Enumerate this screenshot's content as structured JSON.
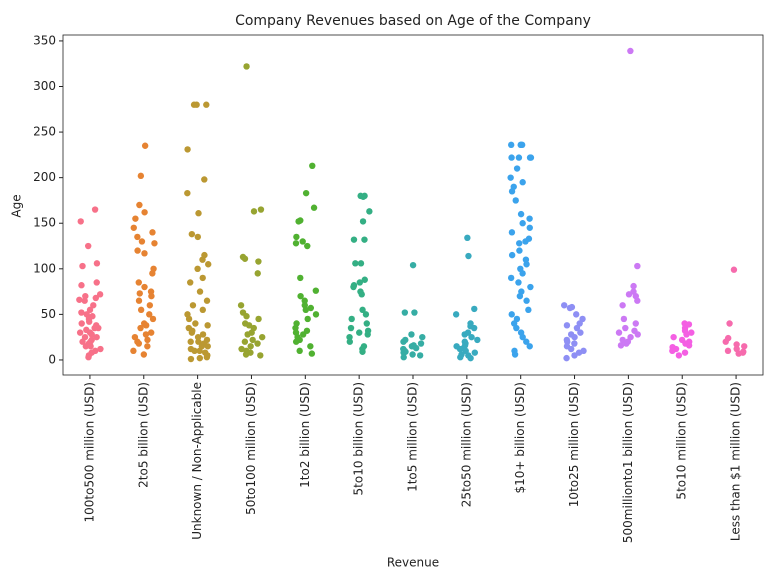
{
  "chart_data": {
    "type": "strip",
    "title": "Company Revenues based on Age of the Company",
    "x_label": "Revenue",
    "y_label": "Age",
    "categories": [
      "100to500 million (USD)",
      "2to5 billion (USD)",
      "Unknown / Non-Applicable",
      "50to100 million (USD)",
      "1to2 billion (USD)",
      "5to10 billion (USD)",
      "1to5 million (USD)",
      "25to50 million (USD)",
      "$10+ billion (USD)",
      "10to25 million (USD)",
      "500millionto1 billion (USD)",
      "5to10 million (USD)",
      "Less than $1 million (USD)"
    ],
    "colors": [
      "#f77189",
      "#e68332",
      "#bb9832",
      "#97a431",
      "#50b131",
      "#34af84",
      "#36ada4",
      "#38aabf",
      "#3ba3ec",
      "#8e8ff4",
      "#cc79f4",
      "#f45fe3",
      "#f66bad"
    ],
    "values": [
      [
        165,
        152,
        125,
        106,
        103,
        85,
        82,
        72,
        70,
        68,
        66,
        65,
        60,
        55,
        52,
        50,
        48,
        45,
        42,
        40,
        38,
        35,
        33,
        30,
        28,
        25,
        22,
        20,
        18,
        15,
        12,
        10,
        8,
        5,
        3,
        25,
        30,
        20,
        15,
        35
      ],
      [
        235,
        202,
        170,
        162,
        155,
        145,
        140,
        135,
        130,
        128,
        120,
        117,
        100,
        95,
        85,
        80,
        75,
        73,
        70,
        65,
        60,
        55,
        50,
        45,
        40,
        38,
        35,
        30,
        28,
        25,
        22,
        20,
        18,
        15,
        10,
        6
      ],
      [
        280,
        280,
        280,
        231,
        198,
        183,
        161,
        138,
        135,
        115,
        110,
        105,
        100,
        90,
        85,
        75,
        65,
        60,
        55,
        50,
        45,
        40,
        38,
        35,
        32,
        30,
        28,
        25,
        22,
        20,
        18,
        15,
        12,
        10,
        8,
        5,
        3,
        2,
        1,
        20,
        15,
        10,
        5
      ],
      [
        322,
        165,
        163,
        113,
        111,
        108,
        95,
        60,
        52,
        48,
        45,
        40,
        38,
        35,
        30,
        28,
        25,
        22,
        20,
        18,
        15,
        12,
        10,
        8,
        6,
        5
      ],
      [
        213,
        183,
        167,
        153,
        152,
        135,
        130,
        128,
        125,
        90,
        76,
        70,
        65,
        60,
        57,
        55,
        50,
        45,
        40,
        35,
        32,
        30,
        28,
        25,
        22,
        20,
        15,
        10,
        7
      ],
      [
        180,
        180,
        179,
        163,
        152,
        132,
        132,
        106,
        106,
        88,
        85,
        82,
        80,
        75,
        72,
        55,
        50,
        45,
        40,
        35,
        32,
        30,
        28,
        25,
        20,
        15,
        12,
        9
      ],
      [
        104,
        52,
        52,
        28,
        25,
        22,
        20,
        18,
        16,
        15,
        13,
        12,
        10,
        9,
        8,
        6,
        5,
        3
      ],
      [
        134,
        114,
        56,
        50,
        40,
        37,
        35,
        30,
        28,
        25,
        22,
        20,
        18,
        16,
        15,
        13,
        12,
        10,
        8,
        6,
        5,
        3,
        2
      ],
      [
        236,
        236,
        236,
        236,
        222,
        222,
        222,
        222,
        210,
        200,
        195,
        190,
        185,
        175,
        160,
        155,
        150,
        145,
        140,
        133,
        130,
        128,
        120,
        115,
        110,
        105,
        100,
        95,
        90,
        85,
        80,
        75,
        70,
        65,
        55,
        50,
        45,
        40,
        35,
        30,
        25,
        20,
        15,
        10,
        6
      ],
      [
        60,
        58,
        57,
        50,
        45,
        40,
        38,
        35,
        30,
        28,
        25,
        22,
        20,
        18,
        15,
        12,
        10,
        8,
        5,
        2
      ],
      [
        339,
        103,
        81,
        75,
        72,
        70,
        65,
        60,
        45,
        40,
        35,
        32,
        30,
        28,
        25,
        22,
        20,
        18,
        16
      ],
      [
        40,
        39,
        35,
        32,
        30,
        28,
        25,
        22,
        20,
        18,
        16,
        14,
        12,
        10,
        8,
        5
      ],
      [
        99,
        40,
        24,
        20,
        17,
        15,
        12,
        10,
        9,
        8,
        7
      ]
    ],
    "ylim": [
      -16.5,
      356.5
    ],
    "yticks": [
      0,
      50,
      100,
      150,
      200,
      250,
      300,
      350
    ],
    "grid": false
  }
}
